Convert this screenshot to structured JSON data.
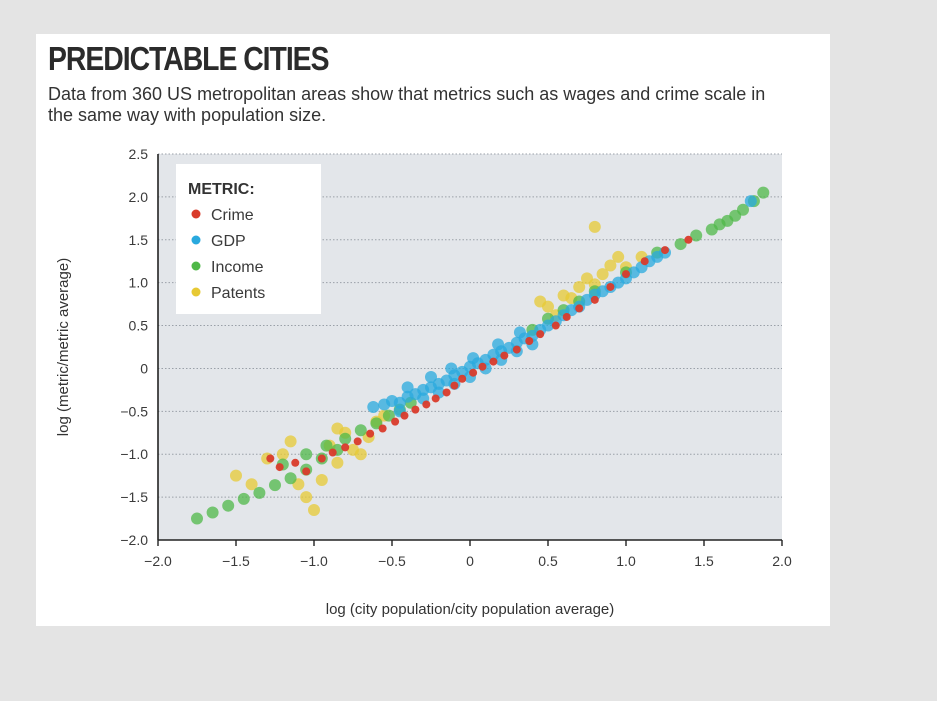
{
  "chart_data": {
    "type": "scatter",
    "title": "PREDICTABLE CITIES",
    "subtitle": "Data from 360 US metropolitan areas show that metrics such as wages and crime scale in the same way with population size.",
    "xlabel": "log (city population/city population average)",
    "ylabel": "log (metric/metric average)",
    "xlim": [
      -2.0,
      2.0
    ],
    "ylim": [
      -2.0,
      2.5
    ],
    "x_ticks": [
      "−2.0",
      "−1.5",
      "−1.0",
      "−0.5",
      "0",
      "0.5",
      "1.0",
      "1.5",
      "2.0"
    ],
    "x_tick_values": [
      -2.0,
      -1.5,
      -1.0,
      -0.5,
      0,
      0.5,
      1.0,
      1.5,
      2.0
    ],
    "y_ticks": [
      "2.5",
      "2.0",
      "1.5",
      "1.0",
      "0.5",
      "0",
      "−0.5",
      "−1.0",
      "−1.5",
      "−2.0"
    ],
    "y_tick_values": [
      2.5,
      2.0,
      1.5,
      1.0,
      0.5,
      0,
      -0.5,
      -1.0,
      -1.5,
      -2.0
    ],
    "grid": "horizontal dotted",
    "legend": {
      "title": "METRIC:",
      "placement": "top-left",
      "entries": [
        "Crime",
        "GDP",
        "Income",
        "Patents"
      ]
    },
    "colors": {
      "Crime": "#d93b2b",
      "GDP": "#29a9de",
      "Income": "#4fb848",
      "Patents": "#e7c934",
      "plot_bg": "#e3e6ea"
    },
    "series": [
      {
        "name": "Crime",
        "points": [
          [
            -1.28,
            -1.05
          ],
          [
            -1.22,
            -1.15
          ],
          [
            -1.12,
            -1.1
          ],
          [
            -1.05,
            -1.2
          ],
          [
            -0.95,
            -1.05
          ],
          [
            -0.88,
            -0.98
          ],
          [
            -0.8,
            -0.92
          ],
          [
            -0.72,
            -0.85
          ],
          [
            -0.64,
            -0.76
          ],
          [
            -0.56,
            -0.7
          ],
          [
            -0.48,
            -0.62
          ],
          [
            -0.42,
            -0.55
          ],
          [
            -0.35,
            -0.48
          ],
          [
            -0.28,
            -0.42
          ],
          [
            -0.22,
            -0.35
          ],
          [
            -0.15,
            -0.28
          ],
          [
            -0.1,
            -0.2
          ],
          [
            -0.05,
            -0.12
          ],
          [
            0.02,
            -0.05
          ],
          [
            0.08,
            0.02
          ],
          [
            0.15,
            0.08
          ],
          [
            0.22,
            0.15
          ],
          [
            0.3,
            0.22
          ],
          [
            0.38,
            0.32
          ],
          [
            0.45,
            0.4
          ],
          [
            0.55,
            0.5
          ],
          [
            0.62,
            0.6
          ],
          [
            0.7,
            0.7
          ],
          [
            0.8,
            0.8
          ],
          [
            0.9,
            0.95
          ],
          [
            1.0,
            1.1
          ],
          [
            1.12,
            1.25
          ],
          [
            1.25,
            1.38
          ],
          [
            1.4,
            1.5
          ]
        ]
      },
      {
        "name": "GDP",
        "points": [
          [
            -0.62,
            -0.45
          ],
          [
            -0.55,
            -0.42
          ],
          [
            -0.5,
            -0.38
          ],
          [
            -0.45,
            -0.4
          ],
          [
            -0.4,
            -0.33
          ],
          [
            -0.35,
            -0.3
          ],
          [
            -0.3,
            -0.25
          ],
          [
            -0.25,
            -0.22
          ],
          [
            -0.2,
            -0.18
          ],
          [
            -0.15,
            -0.14
          ],
          [
            -0.1,
            -0.08
          ],
          [
            -0.05,
            -0.04
          ],
          [
            0.0,
            0.02
          ],
          [
            0.05,
            0.06
          ],
          [
            0.1,
            0.1
          ],
          [
            0.15,
            0.16
          ],
          [
            0.2,
            0.2
          ],
          [
            0.25,
            0.24
          ],
          [
            0.3,
            0.3
          ],
          [
            0.35,
            0.35
          ],
          [
            0.4,
            0.38
          ],
          [
            0.45,
            0.45
          ],
          [
            0.5,
            0.5
          ],
          [
            0.55,
            0.55
          ],
          [
            0.6,
            0.62
          ],
          [
            0.65,
            0.68
          ],
          [
            0.7,
            0.72
          ],
          [
            0.75,
            0.8
          ],
          [
            0.8,
            0.86
          ],
          [
            0.85,
            0.9
          ],
          [
            0.9,
            0.95
          ],
          [
            0.95,
            1.0
          ],
          [
            1.0,
            1.05
          ],
          [
            1.05,
            1.12
          ],
          [
            1.1,
            1.18
          ],
          [
            1.15,
            1.25
          ],
          [
            1.2,
            1.3
          ],
          [
            1.25,
            1.35
          ],
          [
            1.8,
            1.95
          ],
          [
            -0.45,
            -0.5
          ],
          [
            -0.3,
            -0.35
          ],
          [
            -0.2,
            -0.28
          ],
          [
            -0.1,
            -0.18
          ],
          [
            0.0,
            -0.1
          ],
          [
            0.1,
            0.0
          ],
          [
            0.2,
            0.1
          ],
          [
            0.3,
            0.2
          ],
          [
            0.4,
            0.28
          ],
          [
            -0.4,
            -0.22
          ],
          [
            -0.25,
            -0.1
          ],
          [
            -0.12,
            0.0
          ],
          [
            0.02,
            0.12
          ],
          [
            0.18,
            0.28
          ],
          [
            0.32,
            0.42
          ]
        ]
      },
      {
        "name": "Income",
        "points": [
          [
            -1.75,
            -1.75
          ],
          [
            -1.65,
            -1.68
          ],
          [
            -1.55,
            -1.6
          ],
          [
            -1.45,
            -1.52
          ],
          [
            -1.35,
            -1.45
          ],
          [
            -1.25,
            -1.36
          ],
          [
            -1.15,
            -1.28
          ],
          [
            -1.05,
            -1.18
          ],
          [
            -0.95,
            -1.05
          ],
          [
            -0.85,
            -0.95
          ],
          [
            -1.2,
            -1.12
          ],
          [
            -1.05,
            -1.0
          ],
          [
            -0.92,
            -0.9
          ],
          [
            -0.8,
            -0.82
          ],
          [
            -0.7,
            -0.72
          ],
          [
            -0.6,
            -0.64
          ],
          [
            -0.52,
            -0.55
          ],
          [
            -0.45,
            -0.48
          ],
          [
            -0.38,
            -0.4
          ],
          [
            0.4,
            0.45
          ],
          [
            0.5,
            0.58
          ],
          [
            0.6,
            0.68
          ],
          [
            0.7,
            0.78
          ],
          [
            0.8,
            0.9
          ],
          [
            1.0,
            1.12
          ],
          [
            1.2,
            1.35
          ],
          [
            1.35,
            1.45
          ],
          [
            1.45,
            1.55
          ],
          [
            1.55,
            1.62
          ],
          [
            1.65,
            1.72
          ],
          [
            1.75,
            1.85
          ],
          [
            1.82,
            1.95
          ],
          [
            1.88,
            2.05
          ],
          [
            1.7,
            1.78
          ],
          [
            1.6,
            1.68
          ]
        ]
      },
      {
        "name": "Patents",
        "points": [
          [
            -1.3,
            -1.05
          ],
          [
            -1.2,
            -1.0
          ],
          [
            -1.1,
            -1.35
          ],
          [
            -1.05,
            -1.5
          ],
          [
            -1.0,
            -1.65
          ],
          [
            -0.95,
            -1.3
          ],
          [
            -0.9,
            -0.9
          ],
          [
            -0.85,
            -1.1
          ],
          [
            -0.8,
            -0.75
          ],
          [
            -0.7,
            -1.0
          ],
          [
            -0.65,
            -0.8
          ],
          [
            -0.6,
            -0.62
          ],
          [
            -1.15,
            -0.85
          ],
          [
            -0.85,
            -0.7
          ],
          [
            -1.5,
            -1.25
          ],
          [
            -1.4,
            -1.35
          ],
          [
            -0.75,
            -0.95
          ],
          [
            -0.55,
            -0.55
          ],
          [
            0.5,
            0.72
          ],
          [
            0.6,
            0.85
          ],
          [
            0.7,
            0.95
          ],
          [
            0.75,
            1.05
          ],
          [
            0.8,
            0.98
          ],
          [
            0.85,
            1.1
          ],
          [
            0.9,
            1.2
          ],
          [
            0.8,
            1.65
          ],
          [
            0.55,
            0.62
          ],
          [
            0.65,
            0.82
          ],
          [
            1.0,
            1.18
          ],
          [
            1.1,
            1.3
          ],
          [
            0.45,
            0.78
          ],
          [
            0.95,
            1.3
          ]
        ]
      }
    ]
  }
}
